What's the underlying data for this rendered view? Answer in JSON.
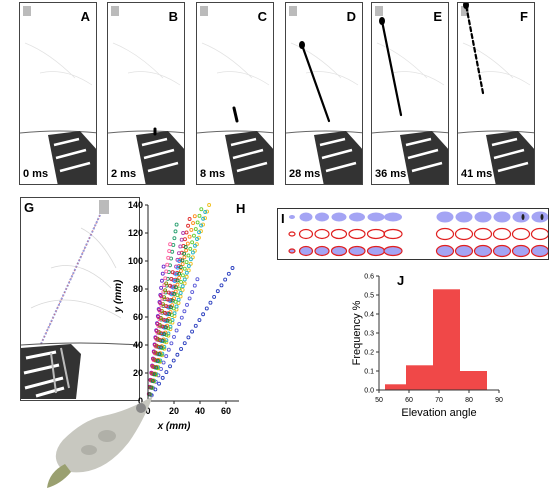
{
  "frames": [
    {
      "letter": "A",
      "time": "0 ms"
    },
    {
      "letter": "B",
      "time": "2 ms"
    },
    {
      "letter": "C",
      "time": "8 ms"
    },
    {
      "letter": "D",
      "time": "28 ms"
    },
    {
      "letter": "E",
      "time": "36 ms"
    },
    {
      "letter": "F",
      "time": "41 ms"
    }
  ],
  "panel_labels": {
    "G": "G",
    "H": "H",
    "I": "I",
    "J": "J"
  },
  "colors": {
    "bar": "#f04848",
    "blue_blob": "#a4a4f4",
    "red_ring": "#e02020"
  },
  "chart_data": [
    {
      "type": "scatter",
      "panel": "H",
      "xlabel": "x (mm)",
      "ylabel": "y (mm)",
      "xlim": [
        0,
        70
      ],
      "ylim": [
        0,
        140
      ],
      "xticks": [
        0,
        20,
        40,
        60
      ],
      "yticks": [
        0,
        20,
        40,
        60,
        80,
        100,
        120,
        140
      ],
      "series": [
        {
          "x_end": 65,
          "y_end": 95
        },
        {
          "x_end": 38,
          "y_end": 87
        },
        {
          "x_end": 47,
          "y_end": 140
        },
        {
          "x_end": 44,
          "y_end": 135
        },
        {
          "x_end": 41,
          "y_end": 137
        },
        {
          "x_end": 36,
          "y_end": 132
        },
        {
          "x_end": 32,
          "y_end": 130
        },
        {
          "x_end": 27,
          "y_end": 120
        },
        {
          "x_end": 22,
          "y_end": 126
        },
        {
          "x_end": 17,
          "y_end": 112
        },
        {
          "x_end": 12,
          "y_end": 96
        },
        {
          "x_end": 24,
          "y_end": 100
        },
        {
          "x_end": 19,
          "y_end": 92
        },
        {
          "x_end": 14,
          "y_end": 84
        },
        {
          "x_end": 10,
          "y_end": 75
        },
        {
          "x_end": 29,
          "y_end": 110
        }
      ]
    },
    {
      "type": "bar",
      "panel": "J",
      "xlabel": "Elevation angle",
      "ylabel": "Frequency %",
      "xlim": [
        50,
        90
      ],
      "ylim": [
        0,
        0.6
      ],
      "xticks": [
        50,
        60,
        70,
        80,
        90
      ],
      "yticks": [
        0.0,
        0.1,
        0.2,
        0.3,
        0.4,
        0.5,
        0.6
      ],
      "bins": [
        [
          52,
          59
        ],
        [
          59,
          68
        ],
        [
          68,
          77
        ],
        [
          77,
          86
        ]
      ],
      "values": [
        0.03,
        0.13,
        0.53,
        0.1
      ]
    }
  ]
}
